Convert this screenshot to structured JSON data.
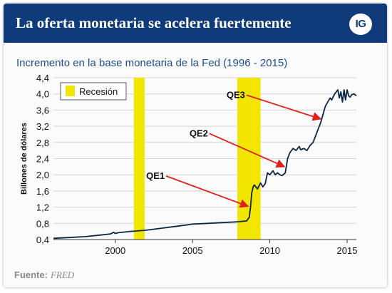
{
  "header": {
    "title": "La oferta monetaria se acelera fuertemente",
    "logo_text": "IG",
    "background_color": "#103b7a"
  },
  "subtitle": "Incremento en la base monetaria de la Fed (1996 - 2015)",
  "source": {
    "label": "Fuente:",
    "value": "FRED"
  },
  "chart_data": {
    "type": "line",
    "title": "Incremento en la base monetaria de la Fed (1996 - 2015)",
    "ylabel": "Billones de dólares",
    "xlabel": "",
    "xlim": [
      1996,
      2015.6
    ],
    "ylim": [
      0.4,
      4.4
    ],
    "x_ticks": [
      2000,
      2005,
      2010,
      2015
    ],
    "y_ticks": [
      0.4,
      0.8,
      1.2,
      1.6,
      2.0,
      2.4,
      2.8,
      3.2,
      3.6,
      4.0,
      4.4
    ],
    "y_tick_labels": [
      "0,4",
      "0,8",
      "1,2",
      "1,6",
      "2,0",
      "2,4",
      "2,8",
      "3,2",
      "3,6",
      "4,0",
      "4,4"
    ],
    "grid": "horizontal",
    "line_color": "#0b2545",
    "recession_color": "#f2e600",
    "legend": {
      "label": "Recesión",
      "placement": "top-left"
    },
    "recessions": [
      {
        "start": 2001.2,
        "end": 2001.9
      },
      {
        "start": 2007.9,
        "end": 2009.4
      }
    ],
    "series": [
      {
        "x": [
          1996,
          1997,
          1998,
          1999,
          1999.7,
          1999.9,
          2000.0,
          2000.2,
          2001.0,
          2002.0,
          2003.0,
          2004.0,
          2005.0,
          2006.0,
          2007.0,
          2008.0,
          2008.5,
          2008.67,
          2008.75,
          2008.83,
          2008.92,
          2009.0,
          2009.2,
          2009.4,
          2009.55,
          2009.7,
          2009.85,
          2010.0,
          2010.2,
          2010.35,
          2010.5,
          2010.65,
          2010.8,
          2011.0,
          2011.15,
          2011.3,
          2011.5,
          2011.7,
          2011.9,
          2012.0,
          2012.2,
          2012.4,
          2012.6,
          2012.8,
          2013.0,
          2013.3,
          2013.6,
          2013.9,
          2014.0,
          2014.2,
          2014.4,
          2014.5,
          2014.6,
          2014.7,
          2014.8,
          2014.9,
          2015.0,
          2015.1,
          2015.2,
          2015.3,
          2015.45,
          2015.6
        ],
        "y": [
          0.43,
          0.45,
          0.47,
          0.51,
          0.54,
          0.58,
          0.55,
          0.57,
          0.6,
          0.63,
          0.68,
          0.73,
          0.78,
          0.8,
          0.82,
          0.84,
          0.86,
          0.95,
          1.2,
          1.55,
          1.7,
          1.75,
          1.65,
          1.8,
          1.7,
          1.78,
          2.05,
          2.0,
          2.1,
          2.0,
          2.05,
          2.0,
          1.98,
          2.05,
          2.4,
          2.55,
          2.65,
          2.6,
          2.7,
          2.62,
          2.65,
          2.6,
          2.72,
          2.8,
          3.0,
          3.3,
          3.7,
          3.9,
          3.85,
          4.0,
          4.1,
          3.9,
          4.05,
          3.8,
          4.1,
          3.85,
          4.1,
          3.95,
          3.92,
          3.98,
          4.0,
          3.95
        ]
      }
    ],
    "annotations": [
      {
        "label": "QE1",
        "text_x": 2002.6,
        "text_y": 1.9,
        "arrow_x": 2008.6,
        "arrow_y": 1.22
      },
      {
        "label": "QE2",
        "text_x": 2005.4,
        "text_y": 2.95,
        "arrow_x": 2010.95,
        "arrow_y": 2.2
      },
      {
        "label": "QE3",
        "text_x": 2007.8,
        "text_y": 3.9,
        "arrow_x": 2013.3,
        "arrow_y": 3.38
      }
    ]
  }
}
